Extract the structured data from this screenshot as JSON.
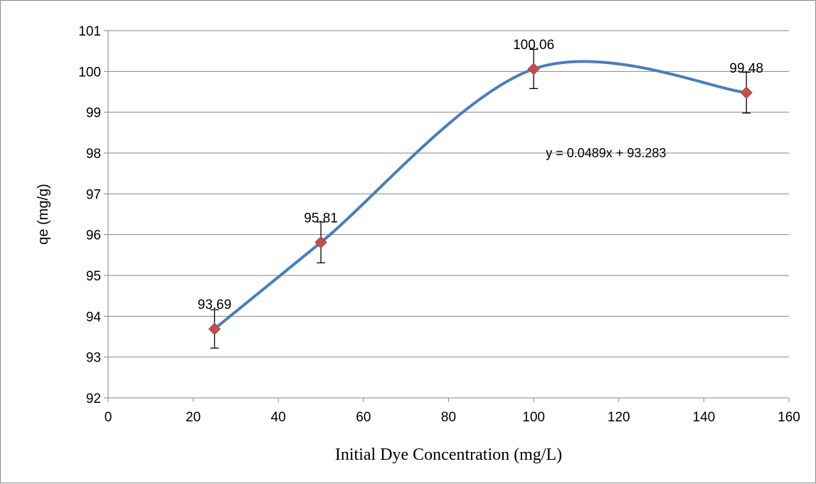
{
  "chart_data": {
    "type": "scatter",
    "xlabel": "Initial Dye Concentration (mg/L)",
    "ylabel": "qe (mg/g)",
    "xlim": [
      0,
      160
    ],
    "ylim": [
      92,
      101
    ],
    "xticks": [
      0,
      20,
      40,
      60,
      80,
      100,
      120,
      140,
      160
    ],
    "yticks": [
      92,
      93,
      94,
      95,
      96,
      97,
      98,
      99,
      100,
      101
    ],
    "grid": "horizontal major gridlines",
    "line_style": "smoothed",
    "series": [
      {
        "x": [
          25,
          50,
          100,
          150
        ],
        "y": [
          93.69,
          95.81,
          100.06,
          99.48
        ],
        "error": [
          0.47,
          0.5,
          0.48,
          0.5
        ],
        "data_labels": [
          "93.69",
          "95.81",
          "100.06",
          "99.48"
        ],
        "line_color": "#4a7ebb",
        "marker_color": "#c0504d",
        "marker": "diamond"
      }
    ],
    "annotations": [
      {
        "text": "y = 0.0489x + 93.283",
        "x": 117,
        "y": 98
      }
    ]
  }
}
